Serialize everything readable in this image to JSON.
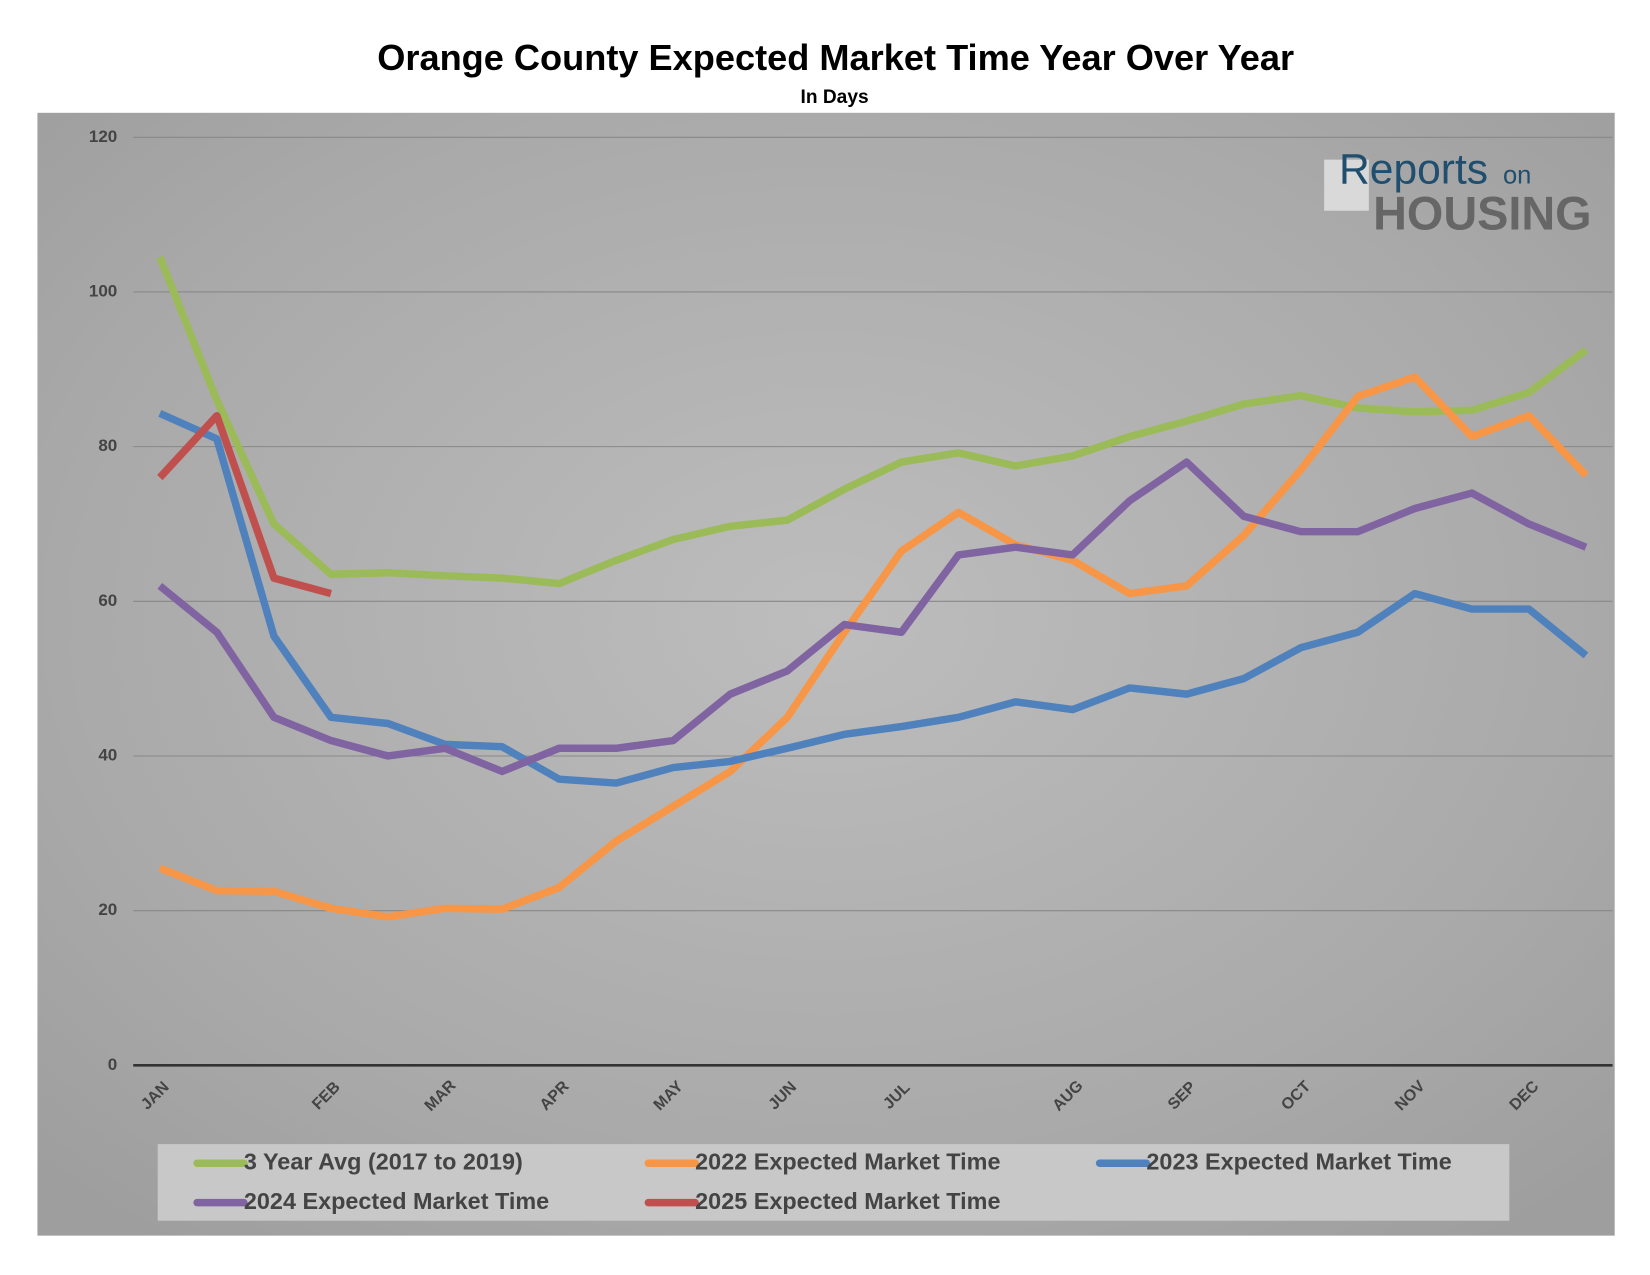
{
  "chart_data": {
    "type": "line",
    "title": "Orange County Expected Market Time Year Over Year",
    "subtitle": "In Days",
    "logo": {
      "line1": "Reports",
      "line1b": "on",
      "line2": "HOUSING"
    },
    "categories": [
      "JAN",
      null,
      null,
      "FEB",
      null,
      "MAR",
      null,
      "APR",
      null,
      "MAY",
      null,
      "JUN",
      null,
      "JUL",
      null,
      null,
      "AUG",
      null,
      "SEP",
      null,
      "OCT",
      null,
      "NOV",
      null,
      "DEC",
      null
    ],
    "series": [
      {
        "name": "3 Year Avg (2017 to 2019)",
        "color": "#9bbb59",
        "values": [
          104.5,
          86,
          70,
          63.5,
          63.7,
          63.3,
          63,
          62.3,
          65.3,
          68,
          69.7,
          70.5,
          74.5,
          78,
          79.2,
          77.5,
          78.8,
          81.3,
          83.3,
          85.5,
          86.6,
          85,
          84.5,
          84.7,
          87,
          92.5
        ]
      },
      {
        "name": "2022 Expected Market Time",
        "color": "#f79646",
        "values": [
          25.5,
          22.6,
          22.5,
          20.3,
          19.2,
          20.3,
          20.2,
          23,
          29,
          33.5,
          38,
          45,
          56,
          66.5,
          71.5,
          67.3,
          65.3,
          61,
          62,
          68.5,
          77,
          86.5,
          89,
          81.3,
          84,
          76.3
        ]
      },
      {
        "name": "2023 Expected Market Time",
        "color": "#4f81bd",
        "values": [
          84.3,
          81,
          55.5,
          45,
          44.2,
          41.5,
          41.2,
          37,
          36.5,
          38.5,
          39.3,
          41,
          42.8,
          43.8,
          45,
          47,
          46,
          48.8,
          48,
          50,
          54,
          56,
          61,
          59,
          59,
          53
        ]
      },
      {
        "name": "2024 Expected Market Time",
        "color": "#8064a2",
        "values": [
          62,
          56,
          45,
          42,
          40,
          41,
          38,
          41,
          41,
          42,
          48,
          51,
          57,
          56,
          66,
          67,
          66,
          73,
          78,
          71,
          69,
          69,
          72,
          74,
          70,
          67
        ]
      },
      {
        "name": "2025 Expected Market Time",
        "color": "#c0504d",
        "values": [
          76,
          84,
          63,
          61,
          null,
          null,
          null,
          null,
          null,
          null,
          null,
          null,
          null,
          null,
          null,
          null,
          null,
          null,
          null,
          null,
          null,
          null,
          null,
          null,
          null,
          null
        ]
      }
    ],
    "ylim": [
      0,
      120
    ],
    "yticks": [
      0,
      20,
      40,
      60,
      80,
      100,
      120
    ],
    "grid": true,
    "legend": "bottom"
  }
}
